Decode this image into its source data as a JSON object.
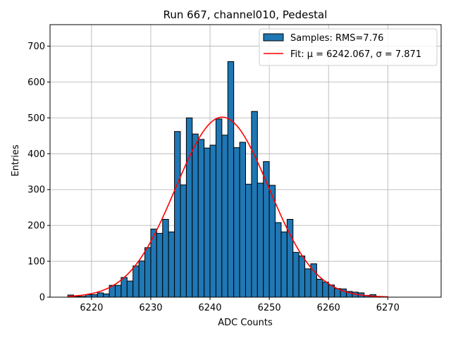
{
  "chart_data": {
    "type": "bar",
    "title": "Run 667, channel010, Pedestal",
    "xlabel": "ADC Counts",
    "ylabel": "Entries",
    "xlim": [
      6213,
      6279
    ],
    "ylim": [
      0,
      760
    ],
    "xticks": [
      6220,
      6230,
      6240,
      6250,
      6260,
      6270
    ],
    "yticks": [
      0,
      100,
      200,
      300,
      400,
      500,
      600,
      700
    ],
    "grid": true,
    "legend_position": "top-right",
    "bar_color": "#1f77b4",
    "bar_edge_color": "#000000",
    "fit_color": "#ff0000",
    "bin_width": 1,
    "histogram": {
      "name": "Samples: RMS=7.76",
      "bin_centers": [
        6216.5,
        6217.5,
        6218.5,
        6219.5,
        6220.5,
        6221.5,
        6222.5,
        6223.5,
        6224.5,
        6225.5,
        6226.5,
        6227.5,
        6228.5,
        6229.5,
        6230.5,
        6231.5,
        6232.5,
        6233.5,
        6234.5,
        6235.5,
        6236.5,
        6237.5,
        6238.5,
        6239.5,
        6240.5,
        6241.5,
        6242.5,
        6243.5,
        6244.5,
        6245.5,
        6246.5,
        6247.5,
        6248.5,
        6249.5,
        6250.5,
        6251.5,
        6252.5,
        6253.5,
        6254.5,
        6255.5,
        6256.5,
        6257.5,
        6258.5,
        6259.5,
        6260.5,
        6261.5,
        6262.5,
        6263.5,
        6264.5,
        6265.5,
        6266.5,
        6267.5,
        6268.5,
        6269.5
      ],
      "counts": [
        6,
        2,
        2,
        7,
        7,
        12,
        9,
        33,
        33,
        55,
        45,
        87,
        101,
        138,
        190,
        178,
        217,
        182,
        462,
        313,
        500,
        455,
        440,
        416,
        424,
        497,
        452,
        657,
        417,
        432,
        315,
        518,
        318,
        378,
        312,
        208,
        182,
        217,
        125,
        115,
        79,
        93,
        50,
        42,
        34,
        24,
        23,
        16,
        14,
        12,
        5,
        7,
        2,
        1
      ]
    },
    "fit": {
      "name": "Fit: μ = 6242.067, σ = 7.871",
      "mu": 6242.067,
      "sigma": 7.871,
      "peak": 502,
      "x_range": [
        6216,
        6270
      ]
    }
  }
}
